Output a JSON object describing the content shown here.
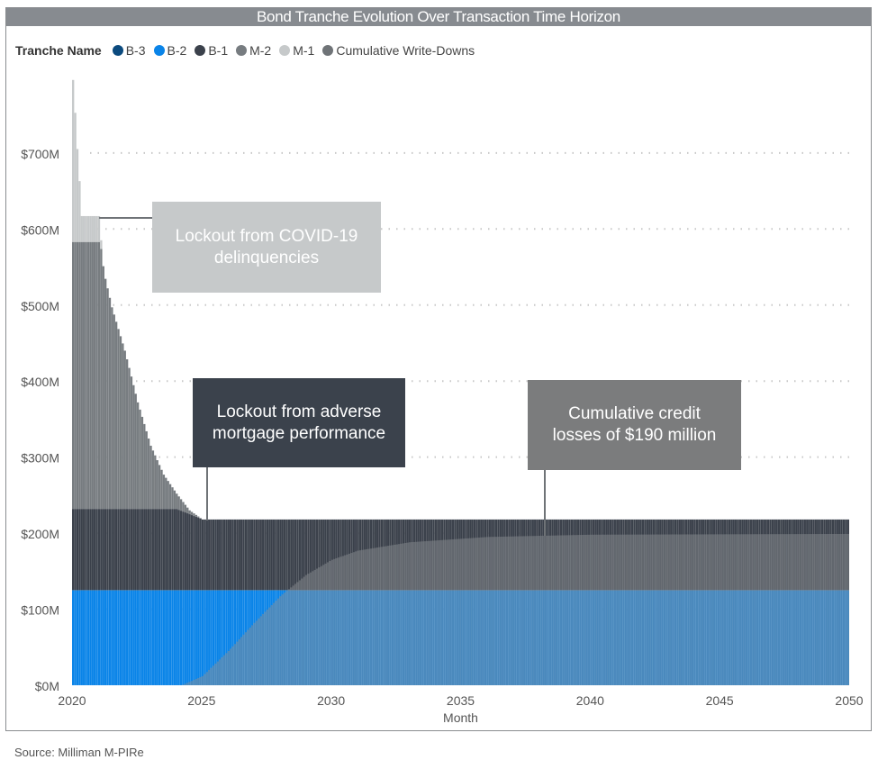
{
  "title": "Bond Tranche Evolution Over Transaction Time Horizon",
  "source": "Source: Milliman M-PIRe",
  "colors": {
    "B-3": "#0b4a7e",
    "B-2": "#0a84e8",
    "B-1": "#3b414b",
    "M-2": "#777c80",
    "M-1": "#c6c9ca",
    "Cumulative Write-Downs": "#6f7377"
  },
  "annotations": [
    {
      "text": "Lockout from COVID-19 delinquencies",
      "color": "#c6c9ca"
    },
    {
      "text": "Lockout from adverse mortgage performance",
      "color": "#3b424c"
    },
    {
      "text": "Cumulative credit losses of $190 million",
      "color": "#7b7c7d"
    }
  ],
  "chart_data": {
    "type": "bar",
    "stacked": true,
    "title": "Bond Tranche Evolution Over Transaction Time Horizon",
    "xlabel": "Month",
    "ylabel": "",
    "legend_title": "Tranche Name",
    "legend_position": "top-left",
    "xlim": [
      2020,
      2050
    ],
    "ylim": [
      0,
      800
    ],
    "x_ticks": [
      "2020",
      "2025",
      "2030",
      "2035",
      "2040",
      "2045",
      "2050"
    ],
    "y_ticks": [
      "$0M",
      "$100M",
      "$200M",
      "$300M",
      "$400M",
      "$500M",
      "$600M",
      "$700M"
    ],
    "y_tick_values": [
      0,
      100,
      200,
      300,
      400,
      500,
      600,
      700
    ],
    "units": "$M, monthly bars; points are [year, value] interpolated monthly",
    "series": [
      {
        "name": "B-3",
        "points": [
          [
            2020,
            0
          ],
          [
            2050,
            0
          ]
        ]
      },
      {
        "name": "B-2",
        "points": [
          [
            2020,
            125
          ],
          [
            2050,
            125
          ]
        ]
      },
      {
        "name": "B-1",
        "points": [
          [
            2020,
            107
          ],
          [
            2024,
            107
          ],
          [
            2025,
            93
          ],
          [
            2050,
            93
          ]
        ]
      },
      {
        "name": "M-2",
        "points": [
          [
            2020,
            351
          ],
          [
            2021.05,
            351
          ],
          [
            2021.2,
            310
          ],
          [
            2021.5,
            265
          ],
          [
            2022,
            208
          ],
          [
            2022.5,
            140
          ],
          [
            2023,
            83
          ],
          [
            2023.5,
            45
          ],
          [
            2024,
            20
          ],
          [
            2024.5,
            5
          ],
          [
            2025,
            0
          ],
          [
            2050,
            0
          ]
        ]
      },
      {
        "name": "M-1",
        "points": [
          [
            2020,
            213
          ],
          [
            2020.083,
            170
          ],
          [
            2020.167,
            122
          ],
          [
            2020.25,
            80
          ],
          [
            2020.333,
            34
          ],
          [
            2021.05,
            34
          ],
          [
            2021.1,
            0
          ],
          [
            2050,
            0
          ]
        ]
      },
      {
        "name": "Cumulative Write-Downs",
        "overlay": true,
        "points": [
          [
            2020,
            0
          ],
          [
            2024.2,
            0
          ],
          [
            2025,
            12
          ],
          [
            2026,
            45
          ],
          [
            2027,
            82
          ],
          [
            2028,
            117
          ],
          [
            2029,
            145
          ],
          [
            2030,
            165
          ],
          [
            2031,
            177
          ],
          [
            2033,
            188
          ],
          [
            2036,
            195
          ],
          [
            2040,
            198
          ],
          [
            2050,
            199
          ]
        ]
      }
    ]
  }
}
